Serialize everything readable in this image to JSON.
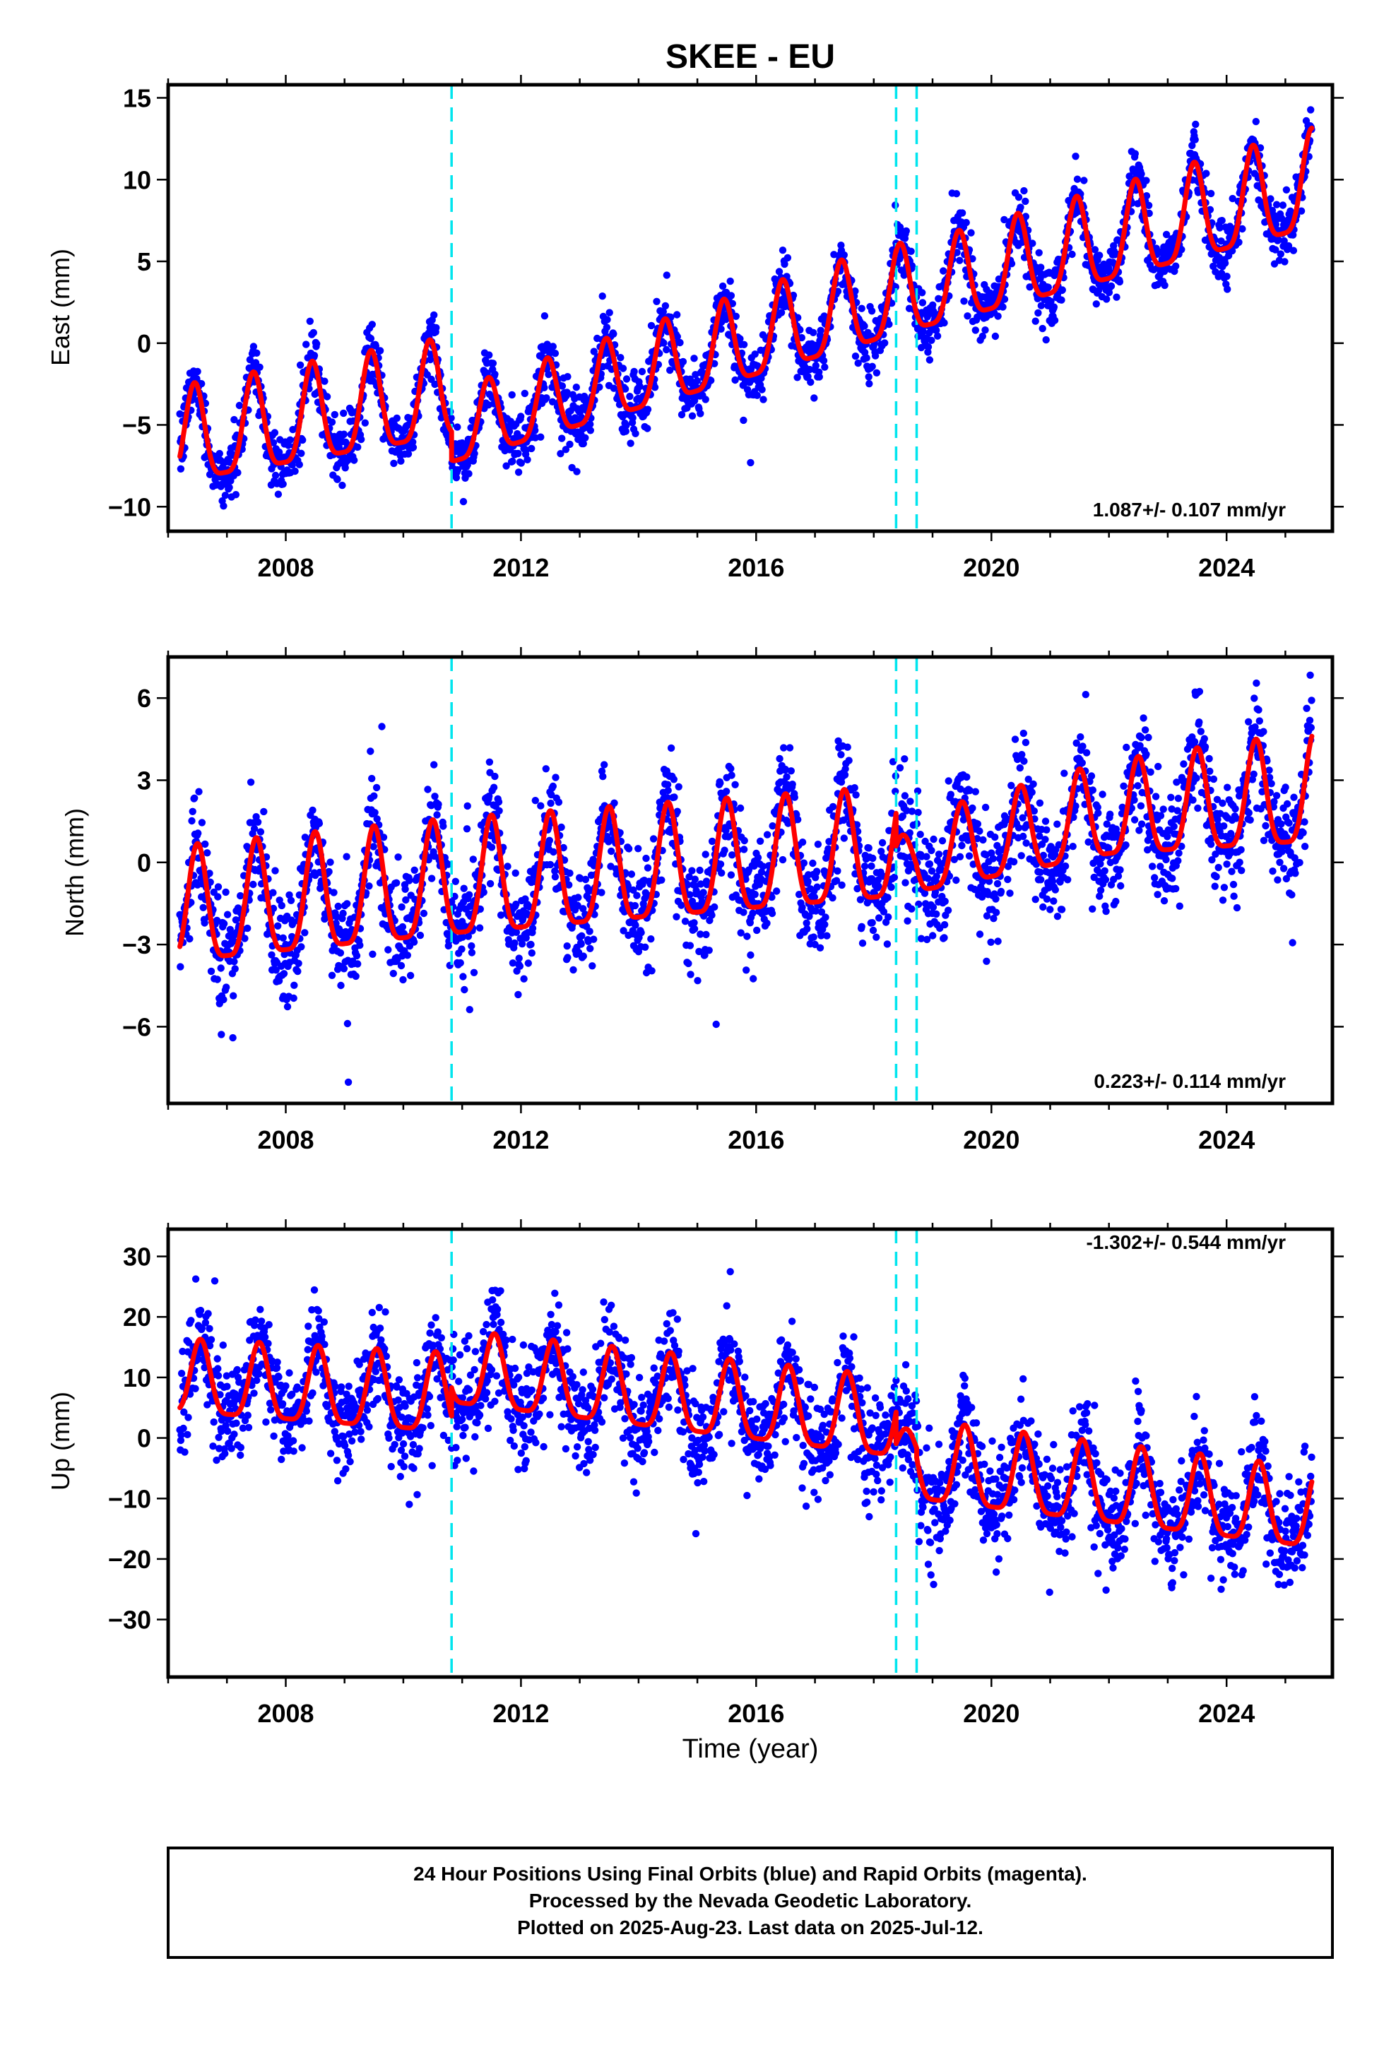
{
  "chart_data": {
    "type": "scatter",
    "title": "SKEE - EU",
    "xlabel": "Time (year)",
    "xlim": [
      2006.0,
      2025.8
    ],
    "x_ticks": [
      2008,
      2012,
      2016,
      2020,
      2024
    ],
    "x_tick_labels": [
      "2008",
      "2012",
      "2016",
      "2020",
      "2024"
    ],
    "x_minor_tick_step": 1,
    "grid": false,
    "colors": {
      "observations": "#0000ff",
      "model_fit": "#ff0000",
      "offset_markers": "#00e5ee",
      "frame": "#000000"
    },
    "offset_events": [
      2010.82,
      2018.38,
      2018.73
    ],
    "panels": [
      {
        "id": "east",
        "ylabel": "East (mm)",
        "ylim": [
          -11.5,
          15.8
        ],
        "y_ticks": [
          -10,
          -5,
          0,
          5,
          10,
          15
        ],
        "y_tick_labels": [
          "−10",
          "−5",
          "0",
          "5",
          "10",
          "15"
        ],
        "y_minor_tick_step": 5,
        "rate_text": "1.087+/- 0.107 mm/yr",
        "rate_position": "bottom-right",
        "scatter_noise": 1.25,
        "model": {
          "segments": [
            {
              "start": 2006.2,
              "end": 2010.82,
              "knots": [
                [
                  2006.2,
                  -6.2
                ],
                [
                  2010.82,
                  -3.3
                ]
              ],
              "amp_knots": [
                [
                  2006.2,
                  2.9
                ],
                [
                  2010.82,
                  3.0
                ]
              ],
              "peak_phase": 0.45
            },
            {
              "start": 2010.82,
              "end": 2018.38,
              "knots": [
                [
                  2010.82,
                  -5.6
                ],
                [
                  2018.38,
                  2.7
                ]
              ],
              "amp_knots": [
                [
                  2010.82,
                  2.2
                ],
                [
                  2018.38,
                  2.8
                ]
              ],
              "peak_phase": 0.45
            },
            {
              "start": 2018.38,
              "end": 2018.73,
              "knots": [
                [
                  2018.38,
                  2.7
                ],
                [
                  2018.73,
                  2.9
                ]
              ],
              "amp_knots": [
                [
                  2018.38,
                  2.7
                ],
                [
                  2018.73,
                  2.7
                ]
              ],
              "peak_phase": 0.45
            },
            {
              "start": 2018.73,
              "end": 2025.45,
              "knots": [
                [
                  2018.73,
                  2.9
                ],
                [
                  2025.45,
                  9.4
                ]
              ],
              "amp_knots": [
                [
                  2018.73,
                  2.6
                ],
                [
                  2025.45,
                  3.0
                ]
              ],
              "peak_phase": 0.45
            }
          ]
        }
      },
      {
        "id": "north",
        "ylabel": "North (mm)",
        "ylim": [
          -8.8,
          7.5
        ],
        "y_ticks": [
          -6,
          -3,
          0,
          3,
          6
        ],
        "y_tick_labels": [
          "−6",
          "−3",
          "0",
          "3",
          "6"
        ],
        "y_minor_tick_step": 3,
        "rate_text": "0.223+/- 0.114 mm/yr",
        "rate_position": "bottom-right",
        "scatter_noise": 1.3,
        "model": {
          "segments": [
            {
              "start": 2006.2,
              "end": 2010.82,
              "knots": [
                [
                  2006.2,
                  -2.0
                ],
                [
                  2010.82,
                  -1.0
                ]
              ],
              "amp_knots": [
                [
                  2006.2,
                  2.1
                ],
                [
                  2010.82,
                  2.1
                ]
              ],
              "peak_phase": 0.5
            },
            {
              "start": 2010.82,
              "end": 2018.38,
              "knots": [
                [
                  2010.82,
                  -1.0
                ],
                [
                  2018.38,
                  0.3
                ]
              ],
              "amp_knots": [
                [
                  2010.82,
                  2.1
                ],
                [
                  2018.38,
                  2.0
                ]
              ],
              "peak_phase": 0.5
            },
            {
              "start": 2018.38,
              "end": 2018.73,
              "knots": [
                [
                  2018.38,
                  0.0
                ],
                [
                  2018.73,
                  0.0
                ]
              ],
              "amp_knots": [
                [
                  2018.38,
                  0.8
                ],
                [
                  2018.73,
                  0.8
                ]
              ],
              "peak_phase": 0.5
            },
            {
              "start": 2018.73,
              "end": 2025.45,
              "knots": [
                [
                  2018.73,
                  0.0
                ],
                [
                  2022.0,
                  1.6
                ],
                [
                  2025.45,
                  2.3
                ]
              ],
              "amp_knots": [
                [
                  2018.73,
                  1.4
                ],
                [
                  2025.45,
                  2.0
                ]
              ],
              "peak_phase": 0.5
            }
          ]
        }
      },
      {
        "id": "up",
        "ylabel": "Up (mm)",
        "ylim": [
          -39.5,
          34.5
        ],
        "y_ticks": [
          -30,
          -20,
          -10,
          0,
          10,
          20,
          30
        ],
        "y_tick_labels": [
          "−30",
          "−20",
          "−10",
          "0",
          "10",
          "20",
          "30"
        ],
        "y_minor_tick_step": 10,
        "rate_text": "-1.302+/- 0.544 mm/yr",
        "rate_position": "top-right",
        "scatter_noise": 5.5,
        "model": {
          "segments": [
            {
              "start": 2006.2,
              "end": 2010.82,
              "knots": [
                [
                  2006.2,
                  9.0
                ],
                [
                  2010.82,
                  6.0
                ]
              ],
              "amp_knots": [
                [
                  2006.2,
                  6.0
                ],
                [
                  2010.82,
                  6.5
                ]
              ],
              "peak_phase": 0.55
            },
            {
              "start": 2010.82,
              "end": 2018.38,
              "knots": [
                [
                  2010.82,
                  10.5
                ],
                [
                  2018.38,
                  2.0
                ]
              ],
              "amp_knots": [
                [
                  2010.82,
                  6.0
                ],
                [
                  2018.38,
                  6.5
                ]
              ],
              "peak_phase": 0.55
            },
            {
              "start": 2018.38,
              "end": 2018.73,
              "knots": [
                [
                  2018.38,
                  -2.0
                ],
                [
                  2018.73,
                  -2.5
                ]
              ],
              "amp_knots": [
                [
                  2018.38,
                  3.0
                ],
                [
                  2018.73,
                  3.0
                ]
              ],
              "peak_phase": 0.55
            },
            {
              "start": 2018.73,
              "end": 2025.45,
              "knots": [
                [
                  2018.73,
                  -5.0
                ],
                [
                  2025.45,
                  -13.0
                ]
              ],
              "amp_knots": [
                [
                  2018.73,
                  6.5
                ],
                [
                  2025.45,
                  6.5
                ]
              ],
              "peak_phase": 0.55
            }
          ]
        }
      }
    ],
    "footer_lines": [
      "24 Hour Positions Using Final Orbits (blue) and Rapid Orbits (magenta).",
      "Processed by the Nevada Geodetic Laboratory.",
      "Plotted on 2025-Aug-23. Last data on 2025-Jul-12."
    ]
  }
}
